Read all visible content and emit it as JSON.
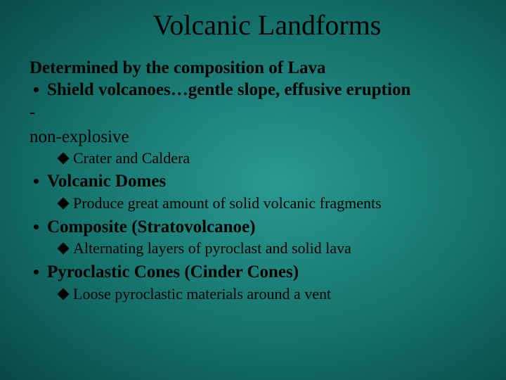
{
  "title": "Volcanic Landforms",
  "intro": "Determined by the composition of Lava",
  "shield": "Shield volcanoes…gentle slope, effusive eruption",
  "dash": "-",
  "nonexp": "non-explosive",
  "sub_crater": "Crater and Caldera",
  "domes": "Volcanic Domes",
  "sub_domes": "Produce great amount of solid volcanic fragments",
  "composite": "Composite (Stratovolcanoe)",
  "sub_composite": "Alternating layers of pyroclast and solid lava",
  "pyroclastic": "Pyroclastic Cones (Cinder Cones)",
  "sub_pyroclastic": "Loose pyroclastic materials around a vent",
  "colors": {
    "text": "#000000",
    "bg_center": "#2a9a92",
    "bg_edge": "#021a1a"
  },
  "fonts": {
    "family": "Times New Roman",
    "title_size_pt": 40,
    "body_size_pt": 25,
    "sub_size_pt": 22
  }
}
